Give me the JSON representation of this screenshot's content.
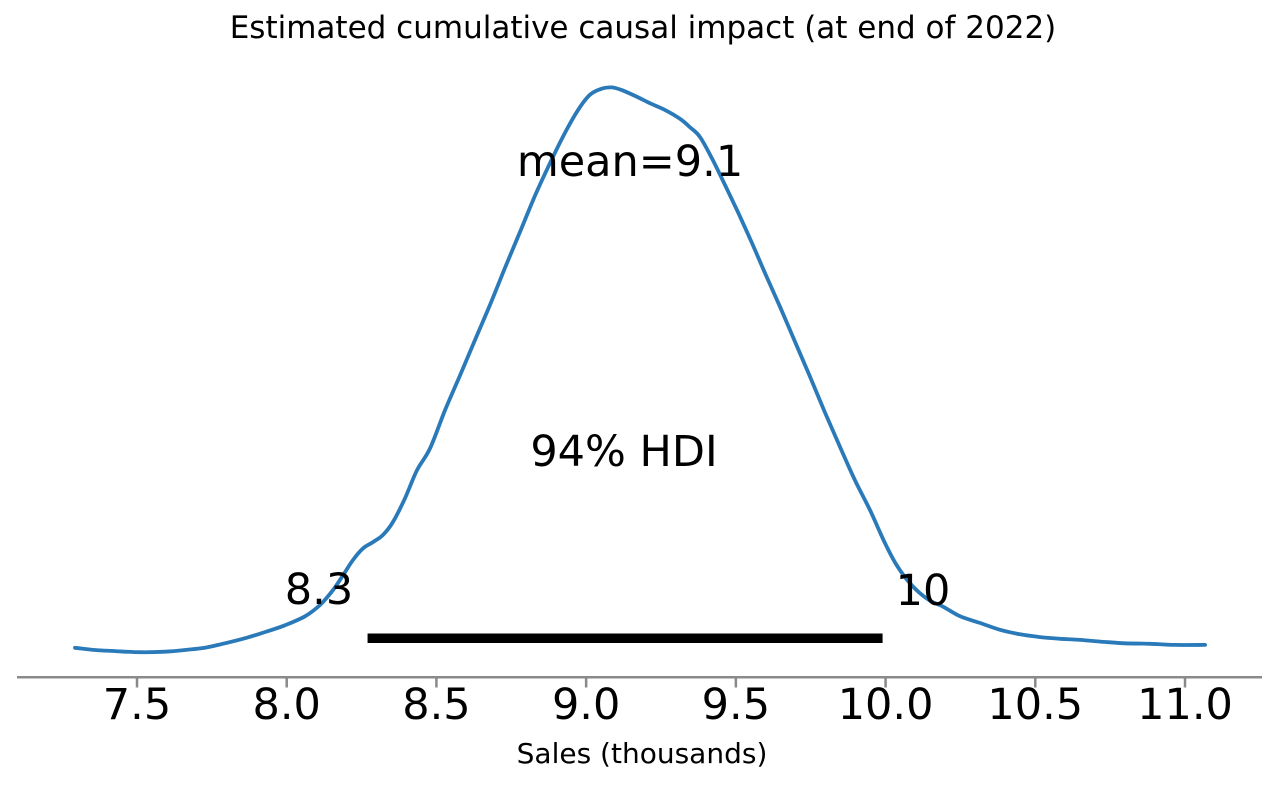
{
  "chart_data": {
    "type": "line",
    "subtype": "posterior-kde",
    "title": "Estimated cumulative causal impact (at end of 2022)",
    "xlabel": "Sales (thousands)",
    "ylabel": "",
    "xlim": [
      7.29,
      11.07
    ],
    "grid": false,
    "legend_position": "none",
    "x_ticks": [
      7.5,
      8.0,
      8.5,
      9.0,
      9.5,
      10.0,
      10.5,
      11.0
    ],
    "x_tick_labels": [
      "7.5",
      "8.0",
      "8.5",
      "9.0",
      "9.5",
      "10.0",
      "10.5",
      "11.0"
    ],
    "colors": {
      "line": "#2a7ab9",
      "hdi_bar": "#000000",
      "spine": "#8a8a8a",
      "text": "#000000",
      "background": "#ffffff"
    },
    "mean": {
      "label": "mean=9.1",
      "value": 9.1
    },
    "hdi": {
      "label": "94% HDI",
      "prob": 0.94,
      "lower": 8.27,
      "upper": 9.99,
      "lower_label": "8.3",
      "upper_label": "10"
    },
    "series": [
      {
        "name": "posterior density (kde)",
        "y_units": "density (normalized, peak = 1.0)",
        "points": [
          [
            7.293,
            0.004
          ],
          [
            7.36,
            0.0
          ],
          [
            7.427,
            -0.002
          ],
          [
            7.51,
            -0.004
          ],
          [
            7.594,
            -0.003
          ],
          [
            7.66,
            0.0
          ],
          [
            7.727,
            0.004
          ],
          [
            7.794,
            0.012
          ],
          [
            7.861,
            0.021
          ],
          [
            7.928,
            0.032
          ],
          [
            7.994,
            0.044
          ],
          [
            8.061,
            0.06
          ],
          [
            8.111,
            0.08
          ],
          [
            8.155,
            0.107
          ],
          [
            8.188,
            0.133
          ],
          [
            8.221,
            0.16
          ],
          [
            8.255,
            0.181
          ],
          [
            8.288,
            0.192
          ],
          [
            8.322,
            0.205
          ],
          [
            8.355,
            0.228
          ],
          [
            8.395,
            0.27
          ],
          [
            8.435,
            0.32
          ],
          [
            8.479,
            0.359
          ],
          [
            8.529,
            0.427
          ],
          [
            8.579,
            0.489
          ],
          [
            8.629,
            0.552
          ],
          [
            8.679,
            0.614
          ],
          [
            8.729,
            0.68
          ],
          [
            8.779,
            0.744
          ],
          [
            8.829,
            0.808
          ],
          [
            8.879,
            0.866
          ],
          [
            8.929,
            0.92
          ],
          [
            8.973,
            0.961
          ],
          [
            9.013,
            0.988
          ],
          [
            9.053,
            0.999
          ],
          [
            9.086,
            1.001
          ],
          [
            9.12,
            0.996
          ],
          [
            9.163,
            0.986
          ],
          [
            9.213,
            0.973
          ],
          [
            9.263,
            0.961
          ],
          [
            9.314,
            0.945
          ],
          [
            9.347,
            0.93
          ],
          [
            9.38,
            0.913
          ],
          [
            9.42,
            0.875
          ],
          [
            9.464,
            0.827
          ],
          [
            9.507,
            0.779
          ],
          [
            9.554,
            0.724
          ],
          [
            9.597,
            0.671
          ],
          [
            9.648,
            0.61
          ],
          [
            9.698,
            0.548
          ],
          [
            9.748,
            0.486
          ],
          [
            9.798,
            0.422
          ],
          [
            9.848,
            0.361
          ],
          [
            9.898,
            0.302
          ],
          [
            9.948,
            0.249
          ],
          [
            9.998,
            0.19
          ],
          [
            10.038,
            0.15
          ],
          [
            10.088,
            0.115
          ],
          [
            10.142,
            0.09
          ],
          [
            10.192,
            0.077
          ],
          [
            10.249,
            0.06
          ],
          [
            10.316,
            0.048
          ],
          [
            10.382,
            0.036
          ],
          [
            10.449,
            0.028
          ],
          [
            10.516,
            0.023
          ],
          [
            10.583,
            0.02
          ],
          [
            10.65,
            0.018
          ],
          [
            10.716,
            0.015
          ],
          [
            10.8,
            0.012
          ],
          [
            10.883,
            0.011
          ],
          [
            10.967,
            0.009
          ],
          [
            11.067,
            0.009
          ]
        ]
      }
    ]
  }
}
